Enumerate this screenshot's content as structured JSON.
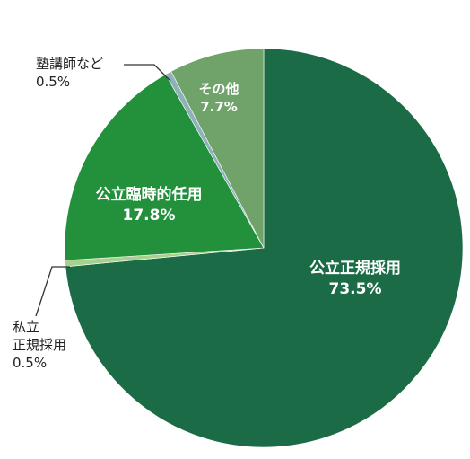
{
  "chart_data": {
    "type": "pie",
    "start_angle_deg": 0,
    "direction": "clockwise",
    "slices": [
      {
        "name": "公立正規採用",
        "value": 73.5,
        "value_label": "73.5%",
        "color": "#1b6b46"
      },
      {
        "name": "私立正規採用",
        "name_lines": [
          "私立",
          "正規採用"
        ],
        "value": 0.5,
        "value_label": "0.5%",
        "color": "#a9d18e"
      },
      {
        "name": "公立臨時的任用",
        "value": 17.8,
        "value_label": "17.8%",
        "color": "#23903c"
      },
      {
        "name": "塾講師など",
        "value": 0.5,
        "value_label": "0.5%",
        "color": "#8fb1b9"
      },
      {
        "name": "その他",
        "value": 7.7,
        "value_label": "7.7%",
        "color": "#6fa36a"
      }
    ]
  }
}
